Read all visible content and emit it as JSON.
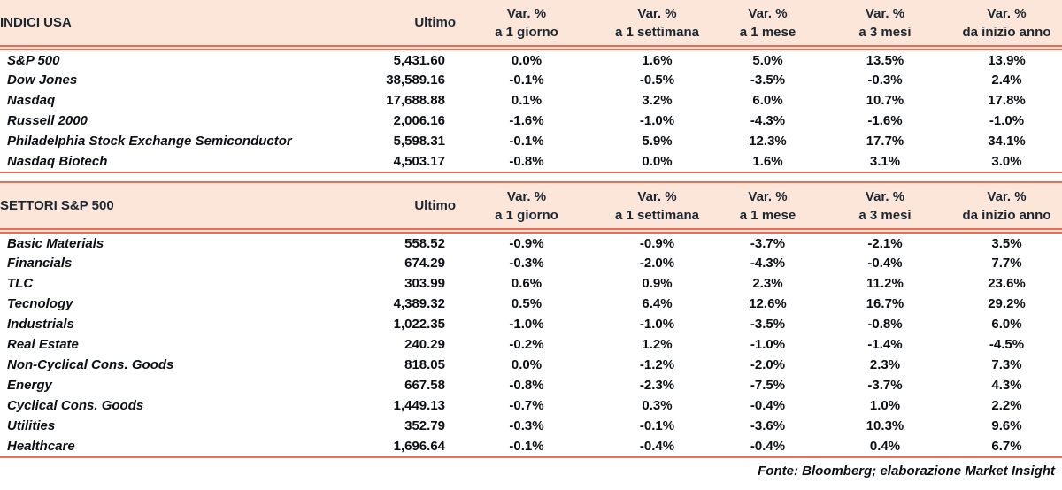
{
  "colors": {
    "header_bg": "#FBE6D9",
    "accent_line": "#EE6B54",
    "header_text": "#1B2631",
    "body_text": "#0B0F14"
  },
  "columns": {
    "ultimo": "Ultimo",
    "variations": [
      {
        "top": "Var. %",
        "bottom": "a 1 giorno"
      },
      {
        "top": "Var. %",
        "bottom": "a 1 settimana"
      },
      {
        "top": "Var. %",
        "bottom": "a 1 mese"
      },
      {
        "top": "Var. %",
        "bottom": "a 3 mesi"
      },
      {
        "top": "Var. %",
        "bottom": "da inizio anno"
      }
    ]
  },
  "indices": {
    "title": "INDICI USA",
    "rows": [
      {
        "name": "S&P 500",
        "ultimo": "5,431.60",
        "d1": "0.0%",
        "w1": "1.6%",
        "m1": "5.0%",
        "m3": "13.5%",
        "ytd": "13.9%"
      },
      {
        "name": "Dow Jones",
        "ultimo": "38,589.16",
        "d1": "-0.1%",
        "w1": "-0.5%",
        "m1": "-3.5%",
        "m3": "-0.3%",
        "ytd": "2.4%"
      },
      {
        "name": "Nasdaq",
        "ultimo": "17,688.88",
        "d1": "0.1%",
        "w1": "3.2%",
        "m1": "6.0%",
        "m3": "10.7%",
        "ytd": "17.8%"
      },
      {
        "name": "Russell 2000",
        "ultimo": "2,006.16",
        "d1": "-1.6%",
        "w1": "-1.0%",
        "m1": "-4.3%",
        "m3": "-1.6%",
        "ytd": "-1.0%"
      },
      {
        "name": "Philadelphia Stock Exchange Semiconductor",
        "ultimo": "5,598.31",
        "d1": "-0.1%",
        "w1": "5.9%",
        "m1": "12.3%",
        "m3": "17.7%",
        "ytd": "34.1%"
      },
      {
        "name": "Nasdaq Biotech",
        "ultimo": "4,503.17",
        "d1": "-0.8%",
        "w1": "0.0%",
        "m1": "1.6%",
        "m3": "3.1%",
        "ytd": "3.0%"
      }
    ]
  },
  "sectors": {
    "title": "SETTORI S&P 500",
    "rows": [
      {
        "name": "Basic Materials",
        "ultimo": "558.52",
        "d1": "-0.9%",
        "w1": "-0.9%",
        "m1": "-3.7%",
        "m3": "-2.1%",
        "ytd": "3.5%"
      },
      {
        "name": "Financials",
        "ultimo": "674.29",
        "d1": "-0.3%",
        "w1": "-2.0%",
        "m1": "-4.3%",
        "m3": "-0.4%",
        "ytd": "7.7%"
      },
      {
        "name": "TLC",
        "ultimo": "303.99",
        "d1": "0.6%",
        "w1": "0.9%",
        "m1": "2.3%",
        "m3": "11.2%",
        "ytd": "23.6%"
      },
      {
        "name": "Tecnology",
        "ultimo": "4,389.32",
        "d1": "0.5%",
        "w1": "6.4%",
        "m1": "12.6%",
        "m3": "16.7%",
        "ytd": "29.2%"
      },
      {
        "name": "Industrials",
        "ultimo": "1,022.35",
        "d1": "-1.0%",
        "w1": "-1.0%",
        "m1": "-3.5%",
        "m3": "-0.8%",
        "ytd": "6.0%"
      },
      {
        "name": "Real Estate",
        "ultimo": "240.29",
        "d1": "-0.2%",
        "w1": "1.2%",
        "m1": "-1.0%",
        "m3": "-1.4%",
        "ytd": "-4.5%"
      },
      {
        "name": "Non-Cyclical Cons. Goods",
        "ultimo": "818.05",
        "d1": "0.0%",
        "w1": "-1.2%",
        "m1": "-2.0%",
        "m3": "2.3%",
        "ytd": "7.3%"
      },
      {
        "name": "Energy",
        "ultimo": "667.58",
        "d1": "-0.8%",
        "w1": "-2.3%",
        "m1": "-7.5%",
        "m3": "-3.7%",
        "ytd": "4.3%"
      },
      {
        "name": "Cyclical Cons. Goods",
        "ultimo": "1,449.13",
        "d1": "-0.7%",
        "w1": "0.3%",
        "m1": "-0.4%",
        "m3": "1.0%",
        "ytd": "2.2%"
      },
      {
        "name": "Utilities",
        "ultimo": "352.79",
        "d1": "-0.3%",
        "w1": "-0.1%",
        "m1": "-3.6%",
        "m3": "10.3%",
        "ytd": "9.6%"
      },
      {
        "name": "Healthcare",
        "ultimo": "1,696.64",
        "d1": "-0.1%",
        "w1": "-0.4%",
        "m1": "-0.4%",
        "m3": "0.4%",
        "ytd": "6.7%"
      }
    ]
  },
  "footer": {
    "source": "Fonte: Bloomberg; elaborazione Market Insight"
  }
}
